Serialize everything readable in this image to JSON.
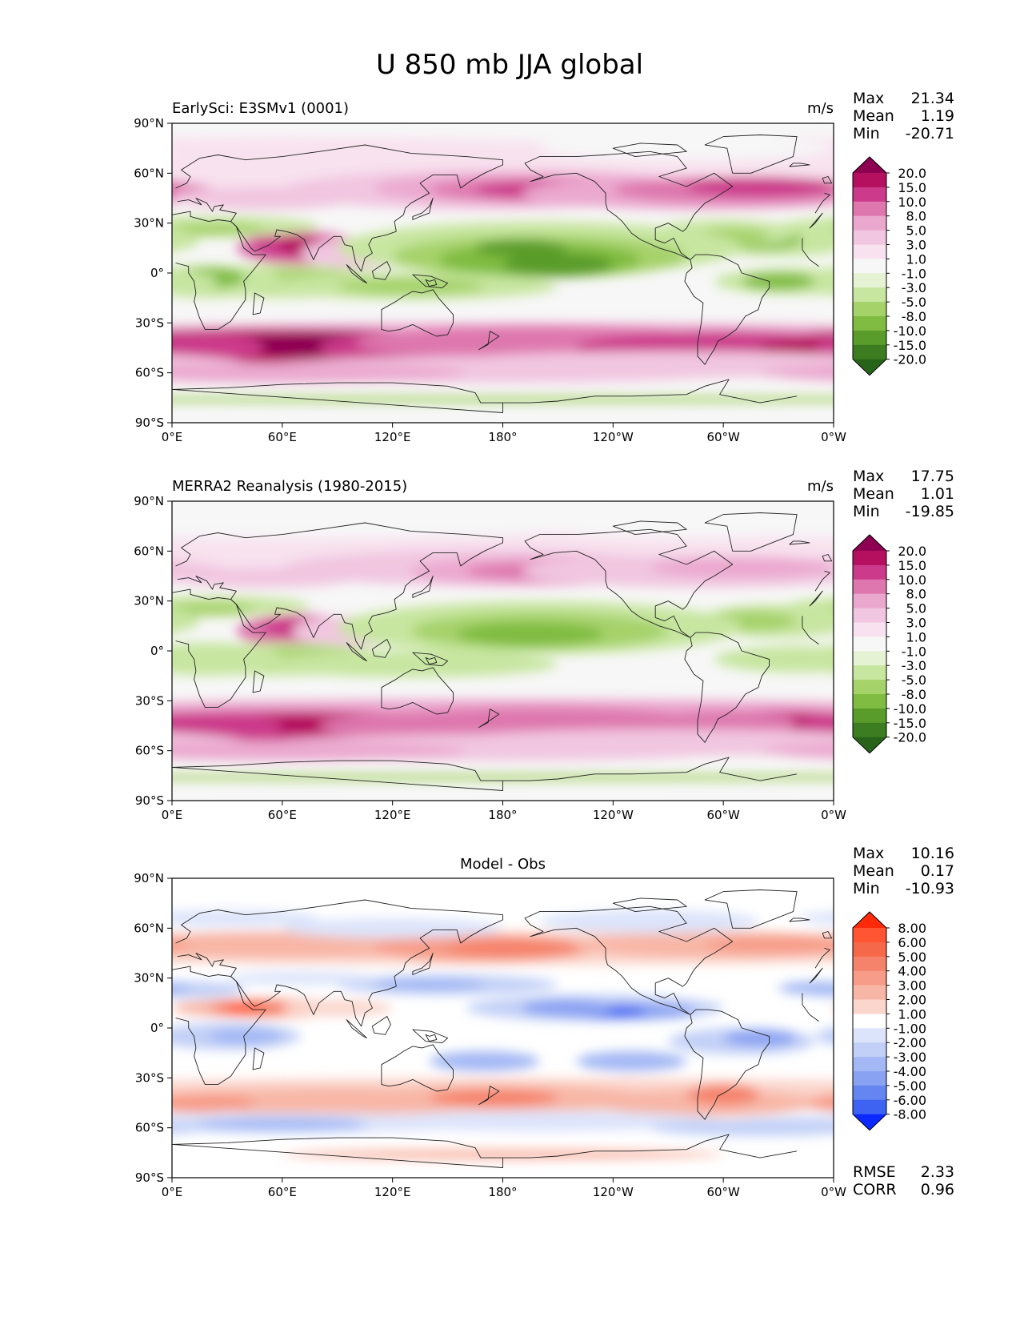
{
  "figure_title": "U 850 mb JJA global",
  "chart_data": [
    {
      "type": "heatmap",
      "subtype": "global-contour-map",
      "title": "EarlySci: E3SMv1 (0001)",
      "units": "m/s",
      "xlabel": "",
      "ylabel": "",
      "x_tick_labels": [
        "0°E",
        "60°E",
        "120°E",
        "180°",
        "120°W",
        "60°W",
        "0°W"
      ],
      "y_tick_labels": [
        "90°N",
        "60°N",
        "30°N",
        "0°",
        "30°S",
        "60°S",
        "90°S"
      ],
      "stats": {
        "Max": "21.34",
        "Mean": "1.19",
        "Min": "-20.71"
      },
      "colormap": "PiYG_r",
      "colorbar_levels": [
        "20.0",
        "15.0",
        "10.0",
        "8.0",
        "5.0",
        "3.0",
        "1.0",
        "-1.0",
        "-3.0",
        "-5.0",
        "-8.0",
        "-10.0",
        "-15.0",
        "-20.0"
      ],
      "colorbar_colors": [
        "#8e0152",
        "#b5105f",
        "#cc3a8b",
        "#de77ae",
        "#eba8cf",
        "#f1c6e0",
        "#f8e2ef",
        "#f7f7f7",
        "#e6f2d4",
        "#c7e6a0",
        "#a6d26a",
        "#7fbc41",
        "#5a9c2c",
        "#3d7d22",
        "#276419"
      ]
    },
    {
      "type": "heatmap",
      "subtype": "global-contour-map",
      "title": "MERRA2 Reanalysis (1980-2015)",
      "units": "m/s",
      "xlabel": "",
      "ylabel": "",
      "x_tick_labels": [
        "0°E",
        "60°E",
        "120°E",
        "180°",
        "120°W",
        "60°W",
        "0°W"
      ],
      "y_tick_labels": [
        "90°N",
        "60°N",
        "30°N",
        "0°",
        "30°S",
        "60°S",
        "90°S"
      ],
      "stats": {
        "Max": "17.75",
        "Mean": "1.01",
        "Min": "-19.85"
      },
      "colormap": "PiYG_r",
      "colorbar_levels": [
        "20.0",
        "15.0",
        "10.0",
        "8.0",
        "5.0",
        "3.0",
        "1.0",
        "-1.0",
        "-3.0",
        "-5.0",
        "-8.0",
        "-10.0",
        "-15.0",
        "-20.0"
      ],
      "colorbar_colors": [
        "#8e0152",
        "#b5105f",
        "#cc3a8b",
        "#de77ae",
        "#eba8cf",
        "#f1c6e0",
        "#f8e2ef",
        "#f7f7f7",
        "#e6f2d4",
        "#c7e6a0",
        "#a6d26a",
        "#7fbc41",
        "#5a9c2c",
        "#3d7d22",
        "#276419"
      ]
    },
    {
      "type": "heatmap",
      "subtype": "global-contour-map",
      "title": "Model - Obs",
      "units": "",
      "xlabel": "",
      "ylabel": "",
      "x_tick_labels": [
        "0°E",
        "60°E",
        "120°E",
        "180°",
        "120°W",
        "60°W",
        "0°W"
      ],
      "y_tick_labels": [
        "90°N",
        "60°N",
        "30°N",
        "0°",
        "30°S",
        "60°S",
        "90°S"
      ],
      "stats": {
        "Max": "10.16",
        "Mean": "0.17",
        "Min": "-10.93"
      },
      "metrics": {
        "RMSE": "2.33",
        "CORR": "0.96"
      },
      "colormap": "diverging red-blue",
      "colorbar_levels": [
        "8.00",
        "6.00",
        "5.00",
        "4.00",
        "3.00",
        "2.00",
        "1.00",
        "-1.00",
        "-2.00",
        "-3.00",
        "-4.00",
        "-5.00",
        "-6.00",
        "-8.00"
      ],
      "colorbar_colors": [
        "#ff2a0a",
        "#ff5533",
        "#f5684a",
        "#f5826b",
        "#f79c88",
        "#f8b6a6",
        "#fbd6cc",
        "#ffffff",
        "#dce4fb",
        "#c2d0f7",
        "#a3b8f4",
        "#8aa2f2",
        "#6585f0",
        "#3e63f2",
        "#0a28ff"
      ]
    }
  ]
}
